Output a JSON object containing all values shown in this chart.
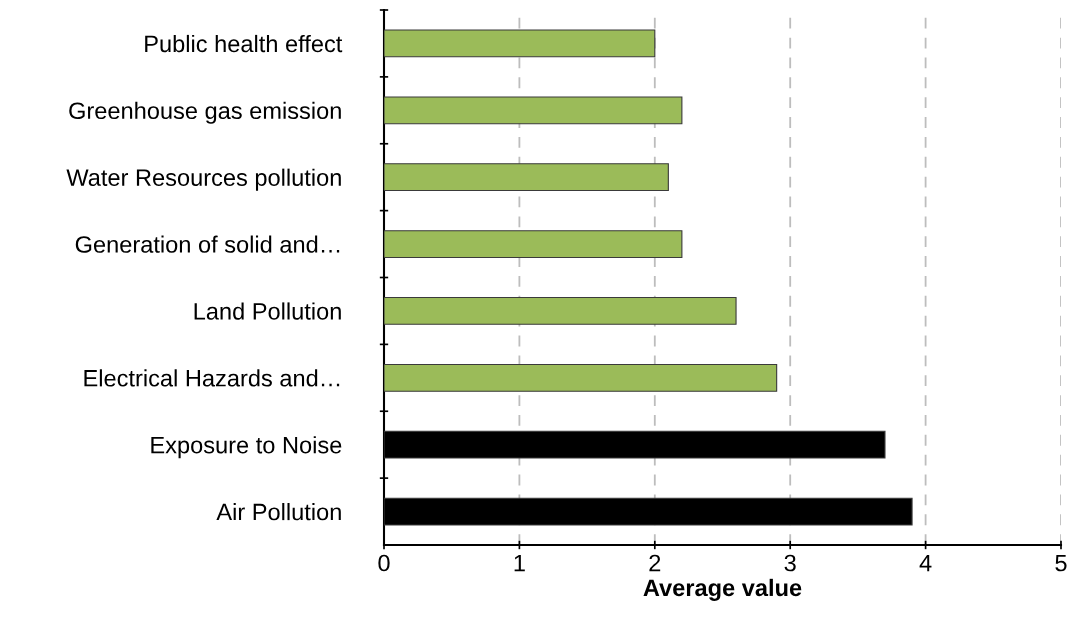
{
  "chart_data": {
    "type": "bar",
    "orientation": "horizontal",
    "xlabel": "Average value",
    "categories": [
      "Public health effect",
      "Greenhouse gas emission",
      "Water Resources pollution",
      "Generation of solid and…",
      "Land Pollution",
      "Electrical Hazards and…",
      "Exposure to Noise",
      "Air Pollution"
    ],
    "values": [
      2.0,
      2.2,
      2.1,
      2.2,
      2.6,
      2.9,
      3.7,
      3.9
    ],
    "colors": [
      "#9bbb59",
      "#9bbb59",
      "#9bbb59",
      "#9bbb59",
      "#9bbb59",
      "#9bbb59",
      "#000000",
      "#000000"
    ],
    "xlim": [
      0,
      5
    ],
    "xticks": [
      0,
      1,
      2,
      3,
      4,
      5
    ],
    "grid": "x",
    "line_style": "dashed"
  }
}
